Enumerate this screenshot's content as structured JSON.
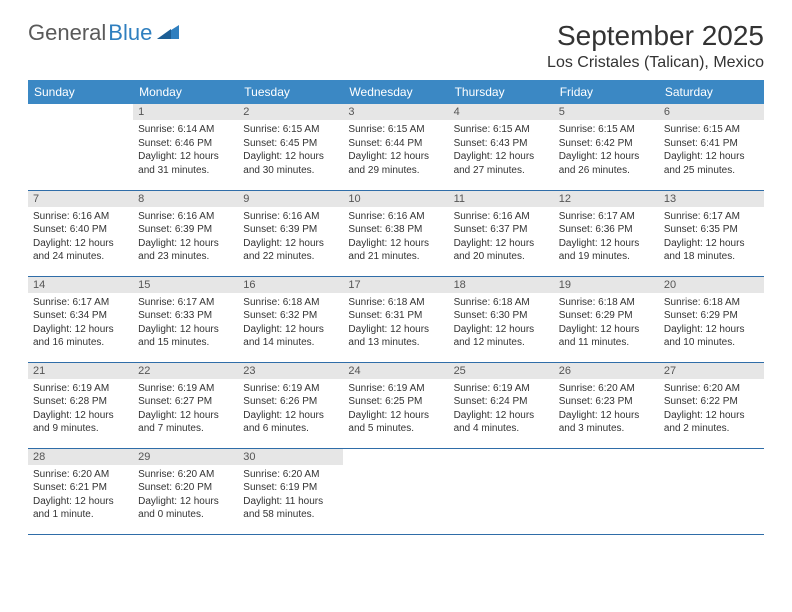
{
  "logo": {
    "text1": "General",
    "text2": "Blue"
  },
  "title": "September 2025",
  "location": "Los Cristales (Talican), Mexico",
  "dayHeaders": [
    "Sunday",
    "Monday",
    "Tuesday",
    "Wednesday",
    "Thursday",
    "Friday",
    "Saturday"
  ],
  "colors": {
    "headerBg": "#3b88c4",
    "headerText": "#ffffff",
    "dayNumBg": "#e6e6e6",
    "rowBorder": "#2f6da8",
    "logoBlue": "#2f7fbf",
    "logoGray": "#5a5a5a"
  },
  "weeks": [
    [
      null,
      {
        "n": "1",
        "sr": "Sunrise: 6:14 AM",
        "ss": "Sunset: 6:46 PM",
        "dl": "Daylight: 12 hours and 31 minutes."
      },
      {
        "n": "2",
        "sr": "Sunrise: 6:15 AM",
        "ss": "Sunset: 6:45 PM",
        "dl": "Daylight: 12 hours and 30 minutes."
      },
      {
        "n": "3",
        "sr": "Sunrise: 6:15 AM",
        "ss": "Sunset: 6:44 PM",
        "dl": "Daylight: 12 hours and 29 minutes."
      },
      {
        "n": "4",
        "sr": "Sunrise: 6:15 AM",
        "ss": "Sunset: 6:43 PM",
        "dl": "Daylight: 12 hours and 27 minutes."
      },
      {
        "n": "5",
        "sr": "Sunrise: 6:15 AM",
        "ss": "Sunset: 6:42 PM",
        "dl": "Daylight: 12 hours and 26 minutes."
      },
      {
        "n": "6",
        "sr": "Sunrise: 6:15 AM",
        "ss": "Sunset: 6:41 PM",
        "dl": "Daylight: 12 hours and 25 minutes."
      }
    ],
    [
      {
        "n": "7",
        "sr": "Sunrise: 6:16 AM",
        "ss": "Sunset: 6:40 PM",
        "dl": "Daylight: 12 hours and 24 minutes."
      },
      {
        "n": "8",
        "sr": "Sunrise: 6:16 AM",
        "ss": "Sunset: 6:39 PM",
        "dl": "Daylight: 12 hours and 23 minutes."
      },
      {
        "n": "9",
        "sr": "Sunrise: 6:16 AM",
        "ss": "Sunset: 6:39 PM",
        "dl": "Daylight: 12 hours and 22 minutes."
      },
      {
        "n": "10",
        "sr": "Sunrise: 6:16 AM",
        "ss": "Sunset: 6:38 PM",
        "dl": "Daylight: 12 hours and 21 minutes."
      },
      {
        "n": "11",
        "sr": "Sunrise: 6:16 AM",
        "ss": "Sunset: 6:37 PM",
        "dl": "Daylight: 12 hours and 20 minutes."
      },
      {
        "n": "12",
        "sr": "Sunrise: 6:17 AM",
        "ss": "Sunset: 6:36 PM",
        "dl": "Daylight: 12 hours and 19 minutes."
      },
      {
        "n": "13",
        "sr": "Sunrise: 6:17 AM",
        "ss": "Sunset: 6:35 PM",
        "dl": "Daylight: 12 hours and 18 minutes."
      }
    ],
    [
      {
        "n": "14",
        "sr": "Sunrise: 6:17 AM",
        "ss": "Sunset: 6:34 PM",
        "dl": "Daylight: 12 hours and 16 minutes."
      },
      {
        "n": "15",
        "sr": "Sunrise: 6:17 AM",
        "ss": "Sunset: 6:33 PM",
        "dl": "Daylight: 12 hours and 15 minutes."
      },
      {
        "n": "16",
        "sr": "Sunrise: 6:18 AM",
        "ss": "Sunset: 6:32 PM",
        "dl": "Daylight: 12 hours and 14 minutes."
      },
      {
        "n": "17",
        "sr": "Sunrise: 6:18 AM",
        "ss": "Sunset: 6:31 PM",
        "dl": "Daylight: 12 hours and 13 minutes."
      },
      {
        "n": "18",
        "sr": "Sunrise: 6:18 AM",
        "ss": "Sunset: 6:30 PM",
        "dl": "Daylight: 12 hours and 12 minutes."
      },
      {
        "n": "19",
        "sr": "Sunrise: 6:18 AM",
        "ss": "Sunset: 6:29 PM",
        "dl": "Daylight: 12 hours and 11 minutes."
      },
      {
        "n": "20",
        "sr": "Sunrise: 6:18 AM",
        "ss": "Sunset: 6:29 PM",
        "dl": "Daylight: 12 hours and 10 minutes."
      }
    ],
    [
      {
        "n": "21",
        "sr": "Sunrise: 6:19 AM",
        "ss": "Sunset: 6:28 PM",
        "dl": "Daylight: 12 hours and 9 minutes."
      },
      {
        "n": "22",
        "sr": "Sunrise: 6:19 AM",
        "ss": "Sunset: 6:27 PM",
        "dl": "Daylight: 12 hours and 7 minutes."
      },
      {
        "n": "23",
        "sr": "Sunrise: 6:19 AM",
        "ss": "Sunset: 6:26 PM",
        "dl": "Daylight: 12 hours and 6 minutes."
      },
      {
        "n": "24",
        "sr": "Sunrise: 6:19 AM",
        "ss": "Sunset: 6:25 PM",
        "dl": "Daylight: 12 hours and 5 minutes."
      },
      {
        "n": "25",
        "sr": "Sunrise: 6:19 AM",
        "ss": "Sunset: 6:24 PM",
        "dl": "Daylight: 12 hours and 4 minutes."
      },
      {
        "n": "26",
        "sr": "Sunrise: 6:20 AM",
        "ss": "Sunset: 6:23 PM",
        "dl": "Daylight: 12 hours and 3 minutes."
      },
      {
        "n": "27",
        "sr": "Sunrise: 6:20 AM",
        "ss": "Sunset: 6:22 PM",
        "dl": "Daylight: 12 hours and 2 minutes."
      }
    ],
    [
      {
        "n": "28",
        "sr": "Sunrise: 6:20 AM",
        "ss": "Sunset: 6:21 PM",
        "dl": "Daylight: 12 hours and 1 minute."
      },
      {
        "n": "29",
        "sr": "Sunrise: 6:20 AM",
        "ss": "Sunset: 6:20 PM",
        "dl": "Daylight: 12 hours and 0 minutes."
      },
      {
        "n": "30",
        "sr": "Sunrise: 6:20 AM",
        "ss": "Sunset: 6:19 PM",
        "dl": "Daylight: 11 hours and 58 minutes."
      },
      null,
      null,
      null,
      null
    ]
  ]
}
